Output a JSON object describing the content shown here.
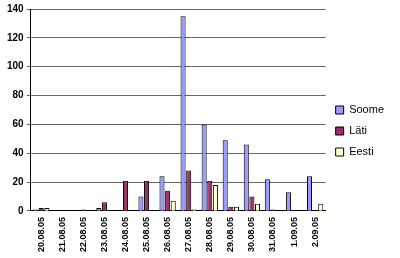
{
  "chart_data": {
    "type": "bar",
    "categories": [
      "20.08.05",
      "21.08.05",
      "22.08.05",
      "23.08.05",
      "24.08.05",
      "25.08.05",
      "26.08.05",
      "27.08.05",
      "28.08.05",
      "29.08.05",
      "30.08.05",
      "31.08.05",
      "1.09.05",
      "2.09.05"
    ],
    "series": [
      {
        "name": "Soome",
        "color": "#9999ff",
        "values": [
          1,
          0,
          0,
          2,
          0,
          10,
          24,
          135,
          60,
          49,
          46,
          22,
          13,
          24
        ]
      },
      {
        "name": "Läti",
        "color": "#993366",
        "values": [
          2,
          0,
          1,
          6,
          21,
          21,
          14,
          28,
          21,
          3,
          10,
          1,
          0,
          0
        ]
      },
      {
        "name": "Eesti",
        "color": "#ffffcc",
        "values": [
          2,
          0,
          0,
          0,
          0,
          0,
          7,
          1,
          18,
          3,
          5,
          0,
          0,
          5
        ]
      }
    ],
    "ylim": [
      0,
      140
    ],
    "yticks": [
      0,
      20,
      40,
      60,
      80,
      100,
      120,
      140
    ],
    "grid": true,
    "legend": "right"
  }
}
